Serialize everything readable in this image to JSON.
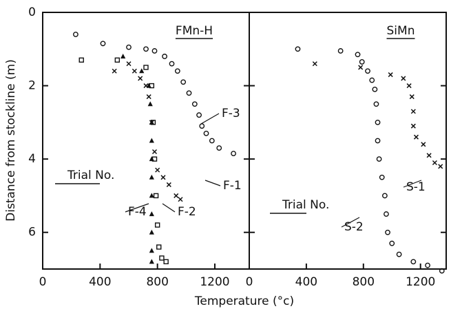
{
  "chart_data": [
    {
      "type": "scatter",
      "title": "FMn-H",
      "annotations": [
        "Trial No."
      ],
      "xlabel": "Temperature (°c)",
      "ylabel": "Distance from stockline (m)",
      "xlim": [
        0,
        1440
      ],
      "xticks": [
        0,
        400,
        800,
        1200
      ],
      "ylim": [
        7,
        0
      ],
      "yticks": [
        0,
        2,
        4,
        6
      ],
      "series": [
        {
          "name": "F-3",
          "marker": "circle",
          "color": "#111",
          "x": [
            230,
            420,
            600,
            720,
            780,
            850,
            900,
            940,
            980,
            1020,
            1060,
            1090,
            1110,
            1140,
            1180,
            1230,
            1330
          ],
          "values": [
            0.6,
            0.85,
            0.95,
            1.0,
            1.05,
            1.2,
            1.4,
            1.6,
            1.9,
            2.2,
            2.5,
            2.8,
            3.1,
            3.3,
            3.5,
            3.7,
            3.85
          ]
        },
        {
          "name": "F-1",
          "marker": "cross",
          "color": "#111",
          "x": [
            500,
            600,
            640,
            680,
            720,
            740,
            760,
            780,
            800,
            840,
            880,
            930,
            960
          ],
          "values": [
            1.6,
            1.4,
            1.6,
            1.8,
            2.0,
            2.3,
            3.0,
            3.8,
            4.3,
            4.5,
            4.7,
            5.0,
            5.1
          ]
        },
        {
          "name": "F-2",
          "marker": "square",
          "color": "#111",
          "x": [
            270,
            520,
            720,
            760,
            770,
            780,
            790,
            800,
            810,
            830,
            860
          ],
          "values": [
            1.3,
            1.3,
            1.5,
            2.0,
            3.0,
            4.0,
            5.0,
            5.8,
            6.4,
            6.7,
            6.8
          ]
        },
        {
          "name": "F-4",
          "marker": "triangle",
          "color": "#111",
          "x": [
            560,
            690,
            740,
            750,
            760,
            760,
            760,
            760,
            760,
            760,
            760,
            760,
            760
          ],
          "values": [
            1.2,
            1.6,
            2.0,
            2.5,
            3.0,
            3.5,
            4.0,
            4.5,
            5.0,
            5.5,
            6.0,
            6.5,
            6.8
          ]
        }
      ]
    },
    {
      "type": "scatter",
      "title": "SiMn",
      "annotations": [
        "Trial No."
      ],
      "xlim": [
        0,
        1380
      ],
      "xticks": [
        0,
        400,
        800,
        1200
      ],
      "ylim": [
        7,
        0
      ],
      "yticks": [
        2,
        4,
        6
      ],
      "series": [
        {
          "name": "S-1",
          "marker": "cross",
          "color": "#111",
          "x": [
            460,
            780,
            990,
            1080,
            1120,
            1140,
            1150,
            1150,
            1170,
            1220,
            1260,
            1300,
            1340
          ],
          "values": [
            1.4,
            1.5,
            1.7,
            1.8,
            2.0,
            2.3,
            2.7,
            3.1,
            3.4,
            3.6,
            3.9,
            4.1,
            4.2
          ]
        },
        {
          "name": "S-2",
          "marker": "circle",
          "color": "#111",
          "x": [
            340,
            640,
            760,
            790,
            830,
            860,
            880,
            890,
            900,
            900,
            910,
            930,
            950,
            960,
            970,
            1000,
            1050,
            1150,
            1250,
            1350
          ],
          "values": [
            1.0,
            1.05,
            1.15,
            1.35,
            1.6,
            1.85,
            2.1,
            2.5,
            3.0,
            3.5,
            4.0,
            4.5,
            5.0,
            5.5,
            6.0,
            6.3,
            6.6,
            6.8,
            6.9,
            7.05
          ]
        }
      ]
    }
  ]
}
